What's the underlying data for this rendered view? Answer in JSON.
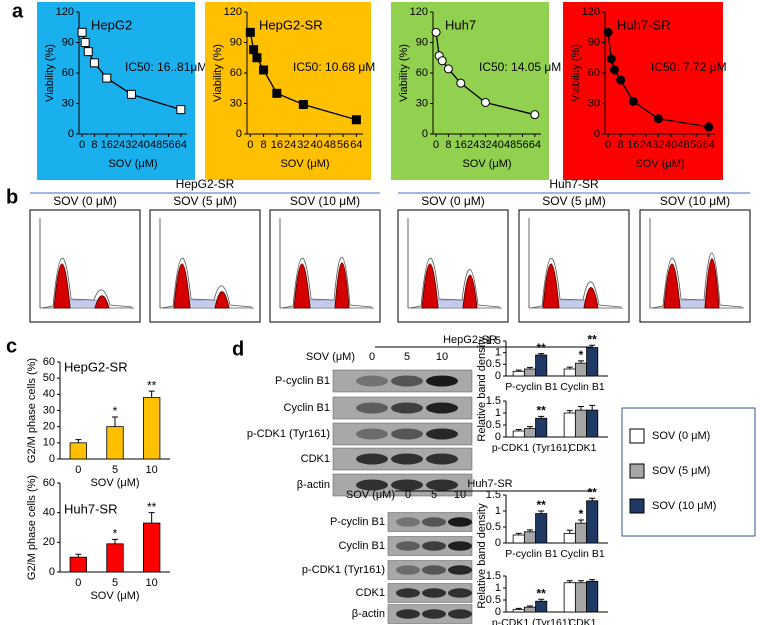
{
  "panel_labels": [
    "a",
    "b",
    "c",
    "d"
  ],
  "chart_data": [
    {
      "type": "line",
      "title": "HepG2",
      "annotation": "IC50: 16..81μM",
      "background": "#1ab0ee",
      "marker": "square",
      "marker_fill": "#ffffff",
      "xlabel": "SOV (μM)",
      "ylabel": "Viability (%)",
      "x": [
        0,
        2,
        4,
        8,
        16,
        32,
        64
      ],
      "values": [
        100,
        90,
        81,
        70,
        55,
        39,
        24
      ],
      "xlim": [
        -2,
        68
      ],
      "xticks": [
        0,
        8,
        16,
        24,
        32,
        40,
        48,
        56,
        64
      ],
      "ylim": [
        0,
        120
      ],
      "yticks": [
        0,
        30,
        60,
        90,
        120
      ]
    },
    {
      "type": "line",
      "title": "HepG2-SR",
      "annotation": "IC50: 10.68 μM",
      "background": "#ffc000",
      "marker": "square",
      "marker_fill": "#000000",
      "xlabel": "SOV (μM)",
      "ylabel": "Viability (%)",
      "x": [
        0,
        2,
        4,
        8,
        16,
        32,
        64
      ],
      "values": [
        100,
        83,
        75,
        63,
        40,
        29,
        14
      ],
      "xlim": [
        -2,
        68
      ],
      "xticks": [
        0,
        8,
        16,
        24,
        32,
        40,
        48,
        56,
        64
      ],
      "ylim": [
        0,
        120
      ],
      "yticks": [
        0,
        30,
        60,
        90,
        120
      ]
    },
    {
      "type": "line",
      "title": "Huh7",
      "annotation": "IC50: 14.05 μM",
      "background": "#92d050",
      "marker": "circle",
      "marker_fill": "#ffffff",
      "xlabel": "SOV (μM)",
      "ylabel": "Viability (%)",
      "x": [
        0,
        2,
        4,
        8,
        16,
        32,
        64
      ],
      "values": [
        100,
        77,
        72,
        64,
        50,
        31,
        19
      ],
      "xlim": [
        -2,
        68
      ],
      "xticks": [
        0,
        8,
        16,
        24,
        32,
        40,
        48,
        56,
        64
      ],
      "ylim": [
        0,
        120
      ],
      "yticks": [
        0,
        30,
        60,
        90,
        120
      ]
    },
    {
      "type": "line",
      "title": "Huh7-SR",
      "annotation": "IC50: 7.72 μM",
      "background": "#ff0000",
      "marker": "circle",
      "marker_fill": "#000000",
      "xlabel": "SOV (μM)",
      "ylabel": "Viability (%)",
      "x": [
        0,
        2,
        4,
        8,
        16,
        32,
        64
      ],
      "values": [
        100,
        74,
        63,
        53,
        32,
        15,
        7
      ],
      "xlim": [
        -2,
        68
      ],
      "xticks": [
        0,
        8,
        16,
        24,
        32,
        40,
        48,
        56,
        64
      ],
      "ylim": [
        0,
        120
      ],
      "yticks": [
        0,
        30,
        60,
        90,
        120
      ]
    },
    {
      "type": "bar",
      "title": "HepG2-SR",
      "xlabel": "SOV (μM)",
      "ylabel": "G2/M phase cells (%)",
      "color": "#ffc000",
      "categories": [
        "0",
        "5",
        "10"
      ],
      "values": [
        10,
        20,
        38
      ],
      "errors": [
        2,
        6,
        4
      ],
      "significance": [
        null,
        "*",
        "**"
      ],
      "ylim": [
        0,
        60
      ],
      "yticks": [
        0,
        10,
        20,
        30,
        40,
        50,
        60
      ]
    },
    {
      "type": "bar",
      "title": "Huh7-SR",
      "xlabel": "SOV (μM)",
      "ylabel": "G2/M phase cells (%)",
      "color": "#ff0000",
      "categories": [
        "0",
        "5",
        "10"
      ],
      "values": [
        10,
        19,
        33
      ],
      "errors": [
        2,
        3,
        7
      ],
      "significance": [
        null,
        "*",
        "**"
      ],
      "ylim": [
        0,
        60
      ],
      "yticks": [
        0,
        20,
        40,
        60
      ]
    },
    {
      "type": "bar",
      "ylabel": "Relative band density",
      "categories": [
        "P-cyclin B1",
        "Cyclin B1"
      ],
      "series": [
        {
          "color": "#ffffff",
          "values": [
            0.2,
            0.3
          ],
          "errors": [
            0.05,
            0.08
          ]
        },
        {
          "color": "#a6a6a6",
          "values": [
            0.3,
            0.55
          ],
          "errors": [
            0.07,
            0.1
          ]
        },
        {
          "color": "#1f3864",
          "values": [
            0.9,
            1.22
          ],
          "errors": [
            0.06,
            0.1
          ]
        }
      ],
      "annotations": [
        {
          "text": "**",
          "category": 0,
          "series": 2
        },
        {
          "text": "*",
          "category": 1,
          "series": 1
        },
        {
          "text": "**",
          "category": 1,
          "series": 2
        }
      ],
      "ylim": [
        0,
        1.5
      ],
      "yticks": [
        0,
        0.5,
        1,
        1.5
      ]
    },
    {
      "type": "bar",
      "categories": [
        "p-CDK1 (Tyr161)",
        "CDK1"
      ],
      "series": [
        {
          "color": "#ffffff",
          "values": [
            0.25,
            1.0
          ],
          "errors": [
            0.06,
            0.1
          ]
        },
        {
          "color": "#a6a6a6",
          "values": [
            0.35,
            1.12
          ],
          "errors": [
            0.08,
            0.15
          ]
        },
        {
          "color": "#1f3864",
          "values": [
            0.78,
            1.12
          ],
          "errors": [
            0.08,
            0.2
          ]
        }
      ],
      "annotations": [
        {
          "text": "**",
          "category": 0,
          "series": 2
        }
      ],
      "ylim": [
        0,
        1.5
      ],
      "yticks": [
        0,
        0.5,
        1,
        1.5
      ]
    },
    {
      "type": "bar",
      "ylabel": "Relative band density",
      "categories": [
        "P-cyclin B1",
        "Cyclin B1"
      ],
      "series": [
        {
          "color": "#ffffff",
          "values": [
            0.25,
            0.3
          ],
          "errors": [
            0.05,
            0.1
          ]
        },
        {
          "color": "#a6a6a6",
          "values": [
            0.35,
            0.62
          ],
          "errors": [
            0.06,
            0.1
          ]
        },
        {
          "color": "#1f3864",
          "values": [
            0.92,
            1.32
          ],
          "errors": [
            0.08,
            0.08
          ]
        }
      ],
      "annotations": [
        {
          "text": "**",
          "category": 0,
          "series": 2
        },
        {
          "text": "*",
          "category": 1,
          "series": 1
        },
        {
          "text": "**",
          "category": 1,
          "series": 2
        }
      ],
      "ylim": [
        0,
        1.5
      ],
      "yticks": [
        0,
        0.5,
        1,
        1.5
      ]
    },
    {
      "type": "bar",
      "categories": [
        "p-CDK1 (Tyr161)",
        "CDK1"
      ],
      "series": [
        {
          "color": "#ffffff",
          "values": [
            0.1,
            1.22
          ],
          "errors": [
            0.05,
            0.08
          ]
        },
        {
          "color": "#a6a6a6",
          "values": [
            0.2,
            1.22
          ],
          "errors": [
            0.05,
            0.08
          ]
        },
        {
          "color": "#1f3864",
          "values": [
            0.45,
            1.28
          ],
          "errors": [
            0.08,
            0.07
          ]
        }
      ],
      "annotations": [
        {
          "text": "**",
          "category": 0,
          "series": 2
        }
      ],
      "ylim": [
        0,
        1.5
      ],
      "yticks": [
        0,
        0.5,
        1,
        1.5
      ]
    }
  ],
  "legend": [
    {
      "name": "SOV (0 μM)",
      "color": "#ffffff"
    },
    {
      "name": "SOV (5 μM)",
      "color": "#a6a6a6"
    },
    {
      "name": "SOV (10 μM)",
      "color": "#1f3864"
    }
  ],
  "flow": {
    "groups": [
      {
        "name": "HepG2-SR",
        "panels": [
          "SOV (0 μM)",
          "SOV (5 μM)",
          "SOV (10 μM)"
        ]
      },
      {
        "name": "Huh7-SR",
        "panels": [
          "SOV (0 μM)",
          "SOV (5 μM)",
          "SOV (10 μM)"
        ]
      }
    ]
  },
  "blots": [
    {
      "group": "HepG2-SR",
      "dose_label": "SOV (μM)",
      "doses": [
        "0",
        "5",
        "10"
      ],
      "rows": [
        "P-cyclin B1",
        "Cyclin B1",
        "p-CDK1 (Tyr161)",
        "CDK1",
        "β-actin"
      ]
    },
    {
      "group": "Huh7-SR",
      "dose_label": "SOV (μM)",
      "doses": [
        "0",
        "5",
        "10"
      ],
      "rows": [
        "P-cyclin B1",
        "Cyclin B1",
        "p-CDK1 (Tyr161)",
        "CDK1",
        "β-actin"
      ]
    }
  ]
}
